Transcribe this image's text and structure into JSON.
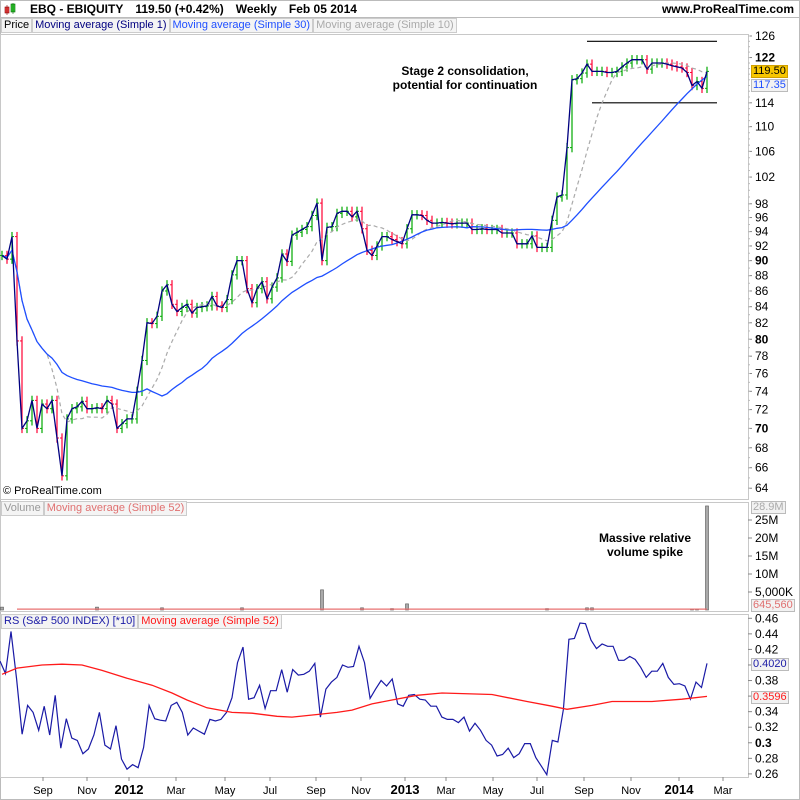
{
  "header": {
    "ticker": "EBQ - EBIQUITY",
    "price_change": "119.50 (+0.42%)",
    "period": "Weekly",
    "date": "Feb 05 2014",
    "site": "www.ProRealTime.com"
  },
  "legend": {
    "price": "Price",
    "ma1": "Moving average (Simple 1)",
    "ma30": "Moving average (Simple 30)",
    "ma10": "Moving average (Simple 10)"
  },
  "volume_legend": {
    "volume": "Volume",
    "ma": "Moving average (Simple 52)"
  },
  "rs_legend": {
    "rs": "RS (S&P 500 INDEX) [*10]",
    "ma": "Moving average (Simple 52)"
  },
  "copyright": "© ProRealTime.com",
  "annotations": {
    "consolidation": [
      "Stage 2 consolidation,",
      "potential for continuation"
    ],
    "volume": [
      "Massive relative",
      "volume spike"
    ]
  },
  "value_labels": {
    "last_price": "119.50",
    "ma30": "117.35",
    "volume_max": "28.9M",
    "volume_ma": "645,560",
    "rs": "0.4020",
    "rs_ma": "0.3596"
  },
  "colors": {
    "up": "#00a800",
    "down": "#ff0033",
    "ma1": "#000080",
    "ma30": "#1f4fff",
    "ma10": "#aaaaaa",
    "rs": "#1a1aa6",
    "rs_ma": "#ff1a1a",
    "volume": "#999999",
    "volume_ma": "#e87070",
    "price_tag": "#f7c600"
  },
  "chart_data": [
    {
      "type": "line",
      "panel": "price",
      "title": "EBQ - EBIQUITY Weekly",
      "scale": "log",
      "ylim": [
        63.5,
        127
      ],
      "yticks": [
        64,
        66,
        68,
        70,
        72,
        74,
        76,
        78,
        80,
        82,
        84,
        86,
        88,
        90,
        92,
        94,
        96,
        98,
        102,
        106,
        110,
        114,
        122,
        126
      ],
      "yticks_bold": [
        70,
        80,
        90,
        122
      ],
      "xlabels": [
        "Sep",
        "Nov",
        "2012",
        "Mar",
        "May",
        "Jul",
        "Sep",
        "Nov",
        "2013",
        "Mar",
        "May",
        "Jul",
        "Sep",
        "Nov",
        "2014",
        "Mar"
      ],
      "xlabels_bold": [
        "2012",
        "2013",
        "2014"
      ],
      "closes": [
        90.7,
        90.2,
        93.3,
        79.8,
        70,
        70.8,
        73,
        70,
        72.6,
        72.1,
        73,
        69,
        65.2,
        71,
        72.1,
        72.3,
        72.9,
        72.1,
        72.1,
        72.2,
        72.1,
        73,
        72.6,
        70,
        70.5,
        71,
        71,
        74,
        77.5,
        82,
        81.9,
        82.8,
        86,
        86.8,
        84.3,
        83.4,
        83.9,
        84.3,
        83.2,
        83.9,
        84,
        84.1,
        85.3,
        84.1,
        83.9,
        84.9,
        88.1,
        90,
        90,
        86.3,
        84.5,
        86.3,
        87.2,
        85,
        86.5,
        87.7,
        90.9,
        89.9,
        93.5,
        93.9,
        94.3,
        94.7,
        96.3,
        98.1,
        90,
        94.6,
        94.7,
        96.6,
        96.9,
        96.9,
        96.1,
        96.9,
        94.4,
        91.4,
        90.7,
        92,
        93.3,
        93.3,
        92.9,
        92.6,
        92.3,
        94.4,
        96.4,
        96.4,
        96.3,
        95.6,
        95.2,
        95.2,
        95.3,
        95.2,
        95.1,
        95.2,
        95.2,
        95.2,
        94.3,
        94.3,
        94.4,
        94.3,
        94.3,
        94.3,
        93.8,
        93.8,
        93.8,
        92.3,
        92.3,
        92.3,
        93.4,
        91.8,
        91.8,
        91.8,
        95.6,
        99,
        99.3,
        106.6,
        118,
        118.2,
        119.2,
        120.8,
        119.5,
        119.5,
        119.5,
        119.3,
        119.3,
        119.5,
        120.3,
        121,
        121.6,
        121.6,
        121.6,
        119.9,
        121,
        121,
        121,
        120.8,
        120.5,
        120.3,
        120.1,
        119.3,
        117,
        117.7,
        116.5,
        119.5
      ],
      "series": [
        {
          "name": "Moving average (Simple 1)"
        },
        {
          "name": "Moving average (Simple 30)"
        },
        {
          "name": "Moving average (Simple 10)"
        }
      ],
      "consolidation_box": {
        "from_week": 117,
        "to_week": 143,
        "top": 125,
        "bottom": 114
      }
    },
    {
      "type": "bar",
      "panel": "volume",
      "unit": "M",
      "ylim": [
        0,
        29
      ],
      "yticks": [
        {
          "v": 5,
          "label": "5,000K"
        },
        {
          "v": 10,
          "label": "10M"
        },
        {
          "v": 15,
          "label": "15M"
        },
        {
          "v": 20,
          "label": "20M"
        },
        {
          "v": 25,
          "label": "25M"
        }
      ],
      "baseline": 0.1,
      "spikes": [
        [
          0,
          0.8
        ],
        [
          19,
          0.8
        ],
        [
          32,
          0.6
        ],
        [
          48,
          0.6
        ],
        [
          64,
          5.6
        ],
        [
          72,
          0.6
        ],
        [
          78,
          0.4
        ],
        [
          81,
          1.7
        ],
        [
          109,
          0.4
        ],
        [
          117,
          0.6
        ],
        [
          118,
          0.6
        ],
        [
          138,
          0.3
        ],
        [
          139,
          0.3
        ],
        [
          141,
          28.9
        ]
      ],
      "ma52": 0.65
    },
    {
      "type": "line",
      "panel": "rs",
      "ylim": [
        0.255,
        0.465
      ],
      "yticks": [
        0.26,
        0.28,
        0.3,
        0.32,
        0.34,
        0.36,
        0.38,
        0.4,
        0.42,
        0.44,
        0.46
      ],
      "yticks_bold": [
        0.3
      ],
      "rs": [
        0.405,
        0.389,
        0.443,
        0.382,
        0.311,
        0.348,
        0.339,
        0.316,
        0.347,
        0.31,
        0.361,
        0.293,
        0.331,
        0.306,
        0.303,
        0.286,
        0.292,
        0.31,
        0.339,
        0.297,
        0.292,
        0.322,
        0.279,
        0.266,
        0.272,
        0.268,
        0.294,
        0.348,
        0.331,
        0.329,
        0.328,
        0.348,
        0.352,
        0.339,
        0.31,
        0.319,
        0.315,
        0.311,
        0.33,
        0.328,
        0.33,
        0.339,
        0.358,
        0.403,
        0.423,
        0.356,
        0.358,
        0.374,
        0.344,
        0.367,
        0.367,
        0.394,
        0.365,
        0.394,
        0.387,
        0.388,
        0.392,
        0.402,
        0.333,
        0.369,
        0.378,
        0.384,
        0.4,
        0.397,
        0.398,
        0.424,
        0.403,
        0.357,
        0.369,
        0.38,
        0.373,
        0.382,
        0.35,
        0.347,
        0.361,
        0.362,
        0.356,
        0.355,
        0.347,
        0.347,
        0.333,
        0.33,
        0.33,
        0.326,
        0.333,
        0.315,
        0.325,
        0.316,
        0.303,
        0.297,
        0.283,
        0.285,
        0.293,
        0.281,
        0.286,
        0.299,
        0.299,
        0.281,
        0.27,
        0.259,
        0.303,
        0.301,
        0.343,
        0.433,
        0.434,
        0.454,
        0.453,
        0.432,
        0.421,
        0.427,
        0.424,
        0.424,
        0.406,
        0.406,
        0.411,
        0.407,
        0.397,
        0.384,
        0.392,
        0.392,
        0.402,
        0.384,
        0.375,
        0.376,
        0.373,
        0.356,
        0.378,
        0.371,
        0.402
      ],
      "ma52": [
        [
          0,
          0.388
        ],
        [
          3,
          0.396
        ],
        [
          8,
          0.4
        ],
        [
          12,
          0.401
        ],
        [
          16,
          0.4
        ],
        [
          20,
          0.393
        ],
        [
          25,
          0.383
        ],
        [
          30,
          0.374
        ],
        [
          34,
          0.364
        ],
        [
          37,
          0.355
        ],
        [
          41,
          0.345
        ],
        [
          46,
          0.339
        ],
        [
          50,
          0.338
        ],
        [
          55,
          0.334
        ],
        [
          58,
          0.333
        ],
        [
          64,
          0.337
        ],
        [
          67,
          0.339
        ],
        [
          70,
          0.342
        ],
        [
          74,
          0.35
        ],
        [
          78,
          0.355
        ],
        [
          83,
          0.361
        ],
        [
          88,
          0.364
        ],
        [
          98,
          0.362
        ],
        [
          105,
          0.353
        ],
        [
          110,
          0.347
        ],
        [
          113,
          0.343
        ],
        [
          118,
          0.348
        ],
        [
          122,
          0.353
        ],
        [
          130,
          0.353
        ],
        [
          136,
          0.356
        ],
        [
          141,
          0.3596
        ]
      ]
    }
  ]
}
